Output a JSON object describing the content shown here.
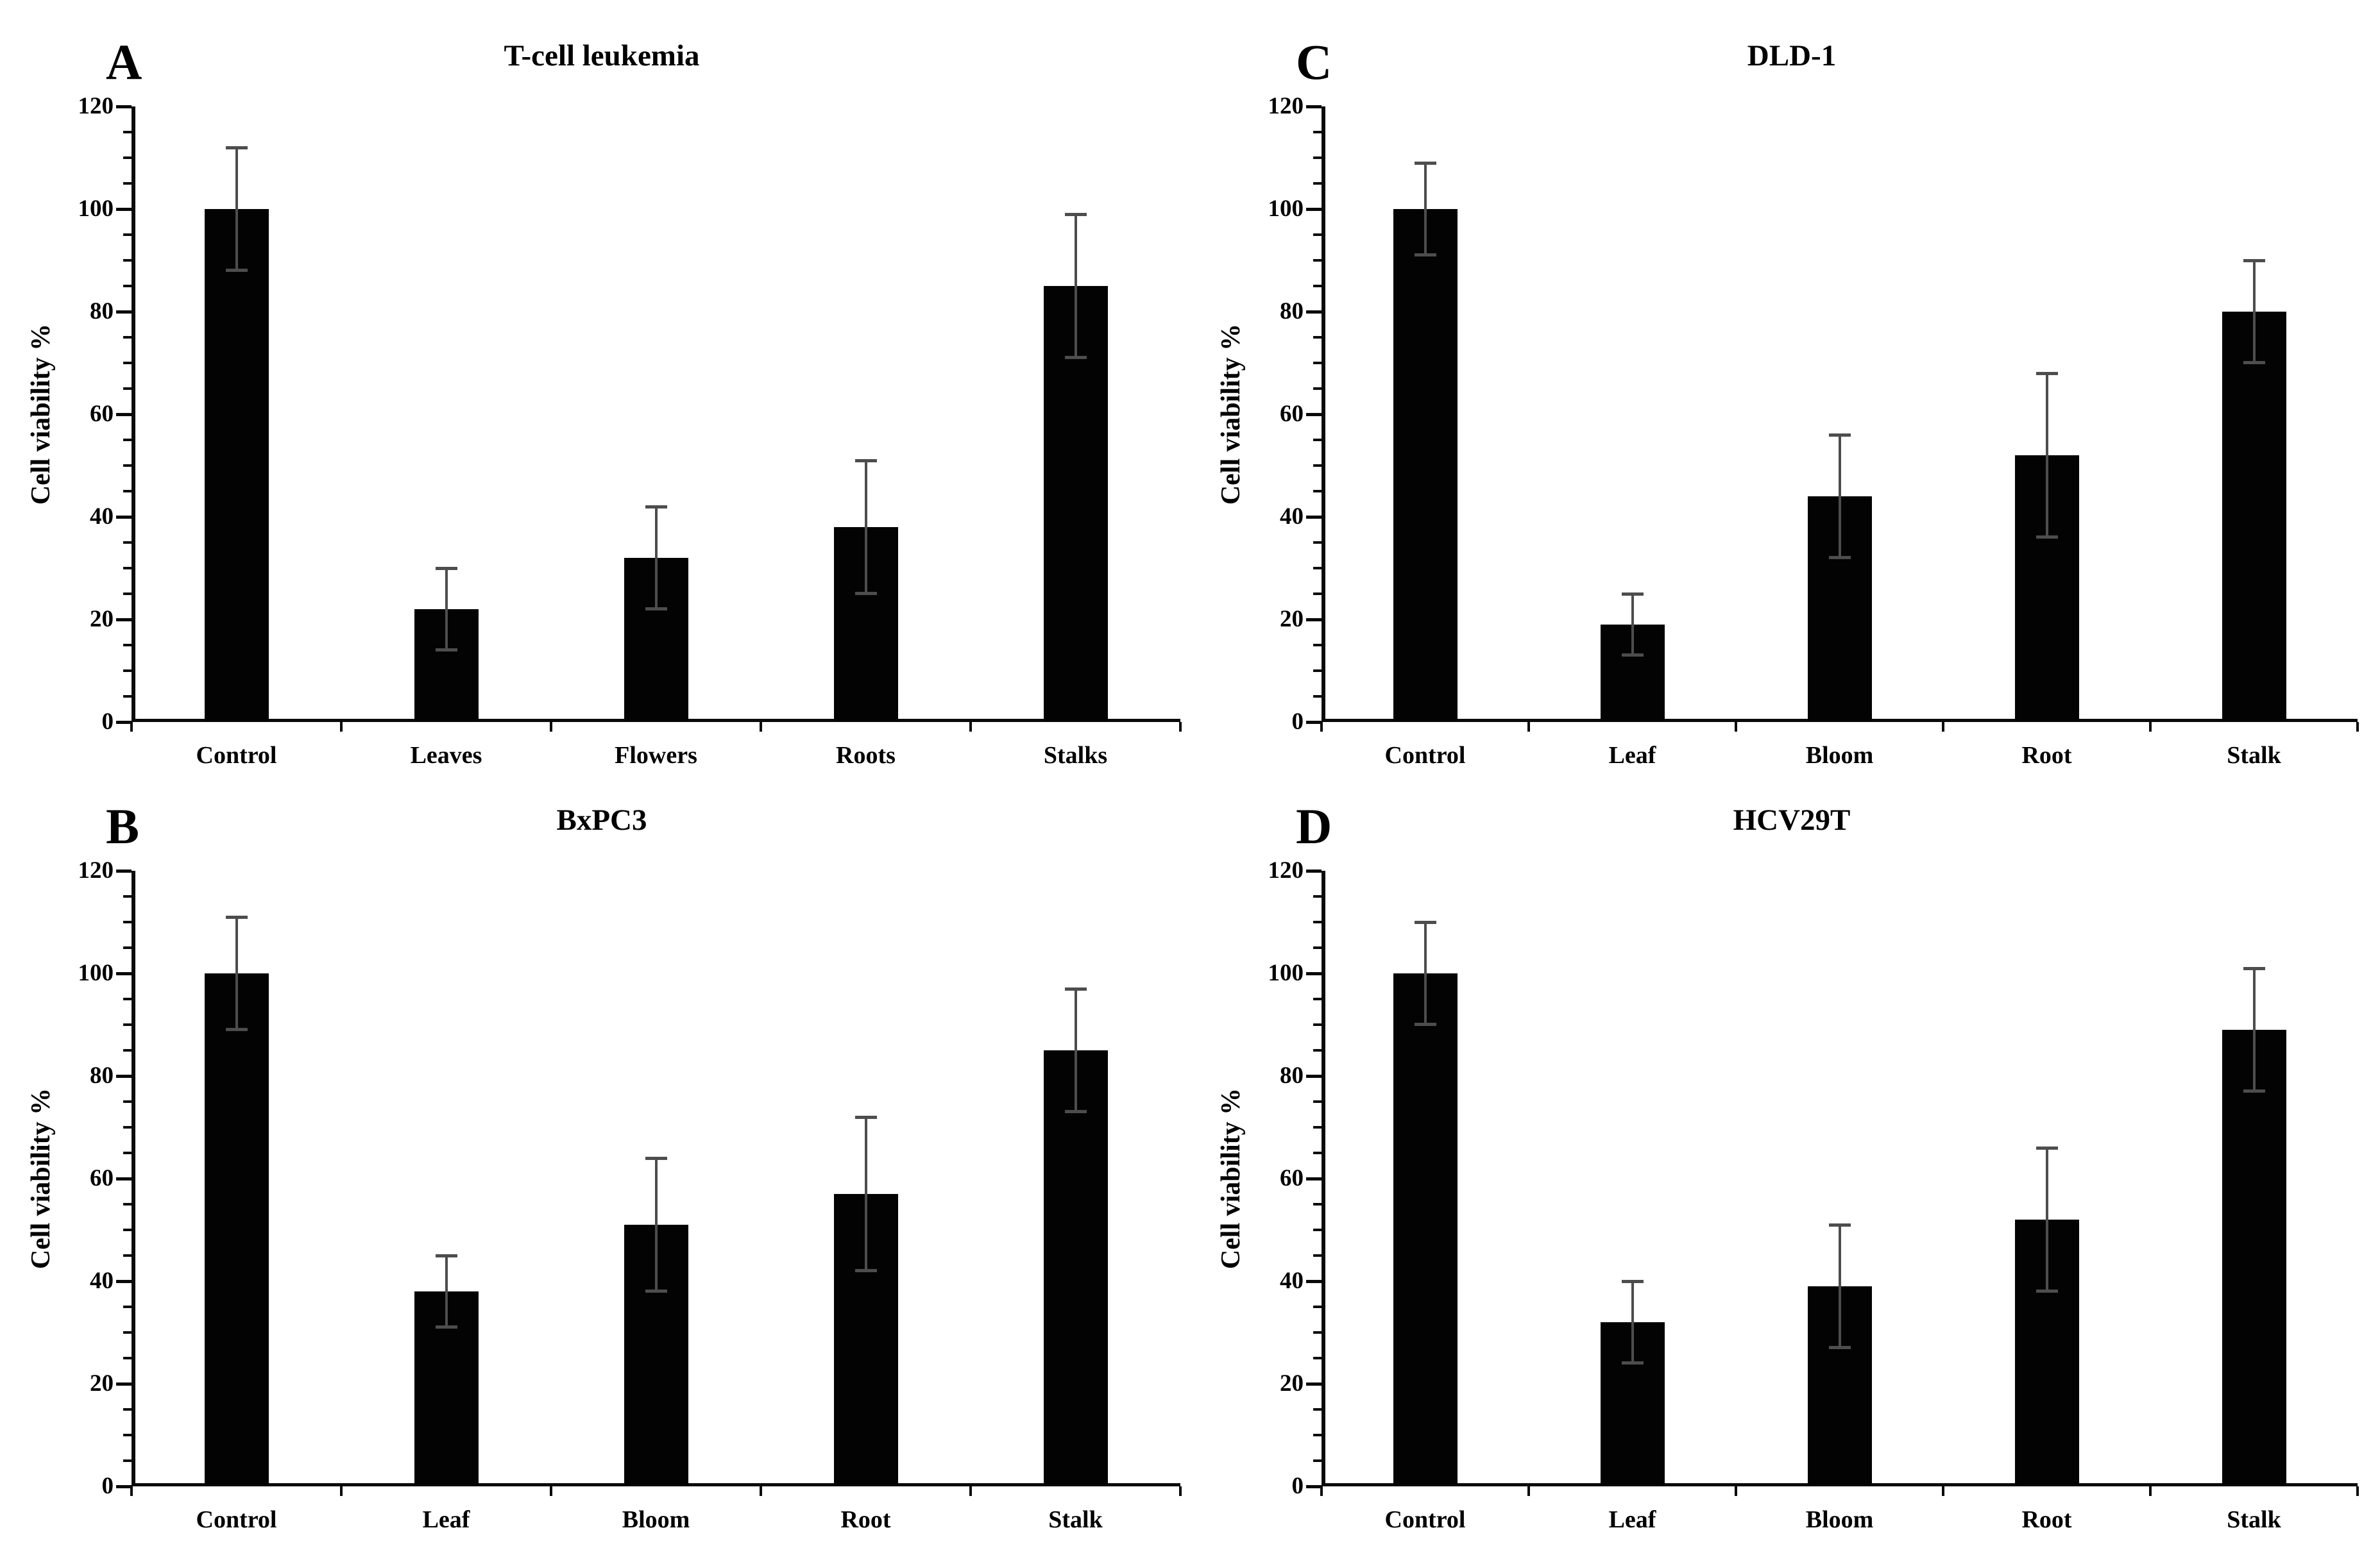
{
  "figure": {
    "background": "#ffffff",
    "bar_color": "#030303",
    "error_bar_color": "#4d4d4d",
    "axis_color": "#0a0a0a",
    "text_color": "#000000"
  },
  "chart_data": [
    {
      "type": "bar",
      "panel": "A",
      "title": "T-cell leukemia",
      "ylabel": "Cell viability %",
      "xlabel": "",
      "ylim": [
        0,
        120
      ],
      "yticks": [
        0,
        20,
        40,
        60,
        80,
        100,
        120
      ],
      "minor_tick_step": 5,
      "grid": "off",
      "legend": "none",
      "categories": [
        "Control",
        "Leaves",
        "Flowers",
        "Roots",
        "Stalks"
      ],
      "values": [
        100,
        22,
        32,
        38,
        85
      ],
      "errors": [
        12,
        8,
        10,
        13,
        14
      ]
    },
    {
      "type": "bar",
      "panel": "B",
      "title": "BxPC3",
      "ylabel": "Cell viability %",
      "xlabel": "",
      "ylim": [
        0,
        120
      ],
      "yticks": [
        0,
        20,
        40,
        60,
        80,
        100,
        120
      ],
      "minor_tick_step": 5,
      "grid": "off",
      "legend": "none",
      "categories": [
        "Control",
        "Leaf",
        "Bloom",
        "Root",
        "Stalk"
      ],
      "values": [
        100,
        38,
        51,
        57,
        85
      ],
      "errors": [
        11,
        7,
        13,
        15,
        12
      ]
    },
    {
      "type": "bar",
      "panel": "C",
      "title": "DLD-1",
      "ylabel": "Cell viability %",
      "xlabel": "",
      "ylim": [
        0,
        120
      ],
      "yticks": [
        0,
        20,
        40,
        60,
        80,
        100,
        120
      ],
      "minor_tick_step": 5,
      "grid": "off",
      "legend": "none",
      "categories": [
        "Control",
        "Leaf",
        "Bloom",
        "Root",
        "Stalk"
      ],
      "values": [
        100,
        19,
        44,
        52,
        80
      ],
      "errors": [
        9,
        6,
        12,
        16,
        10
      ]
    },
    {
      "type": "bar",
      "panel": "D",
      "title": "HCV29T",
      "ylabel": "Cell viability %",
      "xlabel": "",
      "ylim": [
        0,
        120
      ],
      "yticks": [
        0,
        20,
        40,
        60,
        80,
        100,
        120
      ],
      "minor_tick_step": 5,
      "grid": "off",
      "legend": "none",
      "categories": [
        "Control",
        "Leaf",
        "Bloom",
        "Root",
        "Stalk"
      ],
      "values": [
        100,
        32,
        39,
        52,
        89
      ],
      "errors": [
        10,
        8,
        12,
        14,
        12
      ]
    }
  ]
}
